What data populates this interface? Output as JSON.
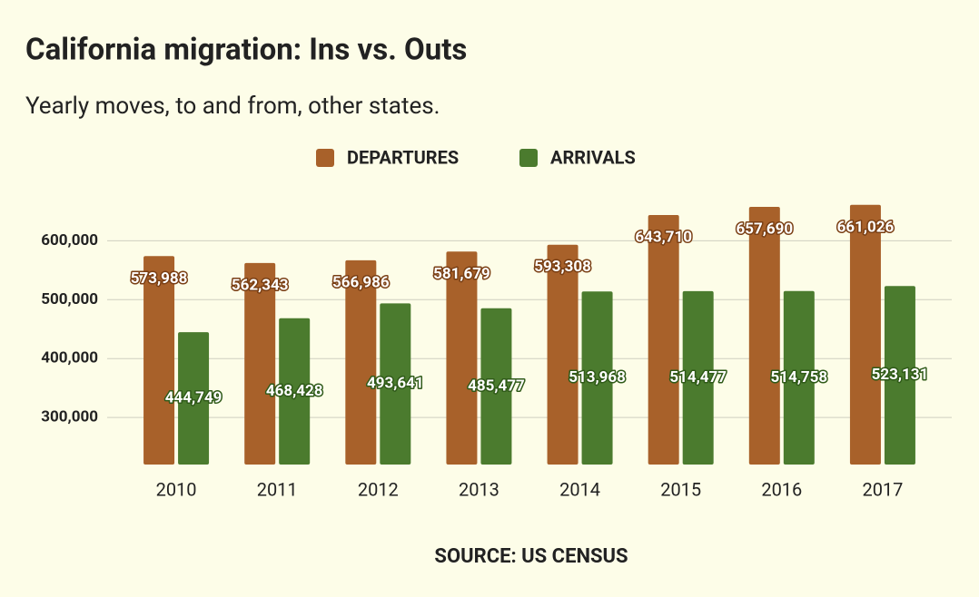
{
  "chart_data": {
    "type": "bar",
    "title": "California migration: Ins vs. Outs",
    "subtitle": "Yearly moves, to and from, other states.",
    "source": "SOURCE: US CENSUS",
    "categories": [
      "2010",
      "2011",
      "2012",
      "2013",
      "2014",
      "2015",
      "2016",
      "2017"
    ],
    "series": [
      {
        "name": "DEPARTURES",
        "color": "#a8612a",
        "values": [
          573988,
          562343,
          566986,
          581679,
          593308,
          643710,
          657690,
          661026
        ],
        "value_labels": [
          "573,988",
          "562,343",
          "566,986",
          "581,679",
          "593,308",
          "643,710",
          "657,690",
          "661,026"
        ]
      },
      {
        "name": "ARRIVALS",
        "color": "#4b7b2e",
        "values": [
          444749,
          468428,
          493641,
          485477,
          513968,
          514477,
          514758,
          523131
        ],
        "value_labels": [
          "444,749",
          "468,428",
          "493,641",
          "485,477",
          "513,968",
          "514,477",
          "514,758",
          "523,131"
        ]
      }
    ],
    "ylim": [
      220000,
      690000
    ],
    "yticks": [
      {
        "value": 300000,
        "label": "300,000"
      },
      {
        "value": 400000,
        "label": "400,000"
      },
      {
        "value": 500000,
        "label": "500,000"
      },
      {
        "value": 600000,
        "label": "600,000"
      }
    ],
    "grid": true,
    "legend": "top"
  }
}
